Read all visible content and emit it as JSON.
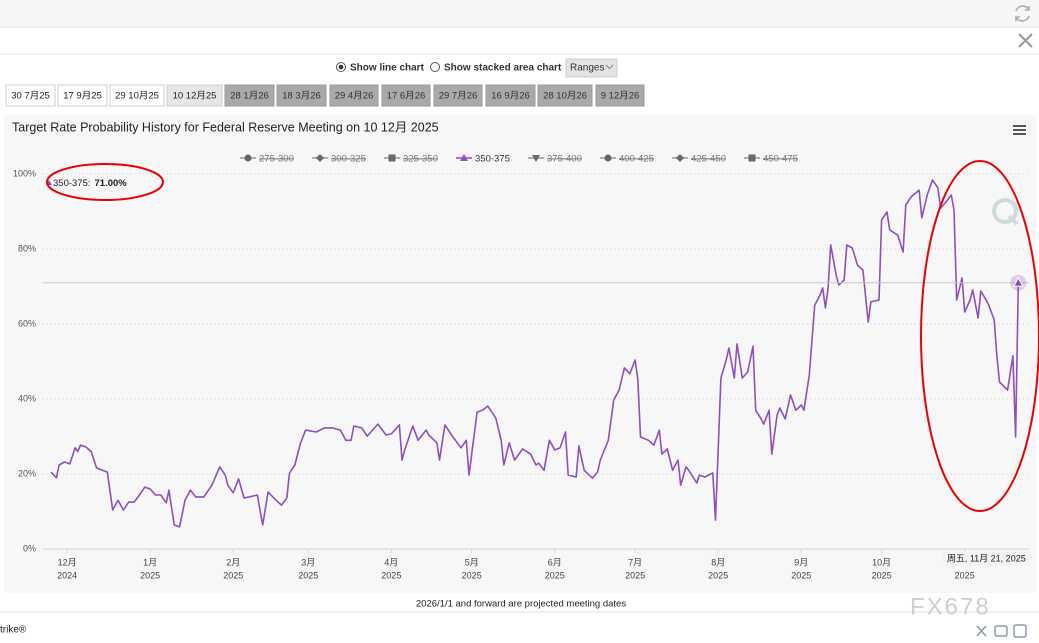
{
  "controls": {
    "line_chart": "Show line chart",
    "stacked_chart": "Show stacked area chart",
    "ranges": "Ranges"
  },
  "meeting_tabs": [
    "30 7月25",
    "17 9月25",
    "29 10月25",
    "10 12月25",
    "28 1月26",
    "18 3月26",
    "29 4月26",
    "17 6月26",
    "29 7月26",
    "16 9月26",
    "28 10月26",
    "9 12月26"
  ],
  "selected_tab": 3,
  "chart_data": {
    "type": "line",
    "title": "Target Rate Probability History for Federal Reserve Meeting on 10 12月 2025",
    "legend": [
      {
        "name": "275-300",
        "marker": "circle",
        "visible": false
      },
      {
        "name": "300-325",
        "marker": "diamond",
        "visible": false
      },
      {
        "name": "325-350",
        "marker": "square",
        "visible": false
      },
      {
        "name": "350-375",
        "marker": "triangle",
        "visible": true
      },
      {
        "name": "375-400",
        "marker": "triangle-down",
        "visible": false
      },
      {
        "name": "400-425",
        "marker": "circle",
        "visible": false
      },
      {
        "name": "425-450",
        "marker": "diamond",
        "visible": false
      },
      {
        "name": "450-475",
        "marker": "square",
        "visible": false
      }
    ],
    "tooltip": {
      "series": "350-375:",
      "label": "71.00%"
    },
    "crosshair": {
      "x": "2025-11-21",
      "label": "周五, 11月 21, 2025"
    },
    "xlim": [
      "2024-11-22",
      "2025-11-25"
    ],
    "xticks": [
      {
        "value": "2024-12-01",
        "label": "12月",
        "year": "2024"
      },
      {
        "value": "2025-01-01",
        "label": "1月",
        "year": "2025"
      },
      {
        "value": "2025-02-01",
        "label": "2月",
        "year": "2025"
      },
      {
        "value": "2025-03-01",
        "label": "3月",
        "year": "2025"
      },
      {
        "value": "2025-04-01",
        "label": "4月",
        "year": "2025"
      },
      {
        "value": "2025-05-01",
        "label": "5月",
        "year": "2025"
      },
      {
        "value": "2025-06-01",
        "label": "6月",
        "year": "2025"
      },
      {
        "value": "2025-07-01",
        "label": "7月",
        "year": "2025"
      },
      {
        "value": "2025-08-01",
        "label": "8月",
        "year": "2025"
      },
      {
        "value": "2025-09-01",
        "label": "9月",
        "year": "2025"
      },
      {
        "value": "2025-10-01",
        "label": "10月",
        "year": "2025"
      },
      {
        "value": "2025-11-01",
        "year": "2025"
      }
    ],
    "ylim": [
      0,
      100
    ],
    "yticks": [
      {
        "value": 0,
        "label": "0%"
      },
      {
        "value": 20,
        "label": "20%"
      },
      {
        "value": 40,
        "label": "40%"
      },
      {
        "value": 60,
        "label": "60%"
      },
      {
        "value": 80,
        "label": "80%"
      },
      {
        "value": 100,
        "label": "100%"
      }
    ],
    "grid": true,
    "x": [
      "2024-11-25",
      "2024-11-27",
      "2024-11-28",
      "2024-11-30",
      "2024-12-02",
      "2024-12-04",
      "2024-12-05",
      "2024-12-06",
      "2024-12-08",
      "2024-12-10",
      "2024-12-12",
      "2024-12-16",
      "2024-12-18",
      "2024-12-20",
      "2024-12-22",
      "2024-12-24",
      "2024-12-26",
      "2024-12-28",
      "2024-12-30",
      "2025-01-01",
      "2025-01-03",
      "2025-01-05",
      "2025-01-07",
      "2025-01-08",
      "2025-01-10",
      "2025-01-12",
      "2025-01-14",
      "2025-01-16",
      "2025-01-18",
      "2025-01-21",
      "2025-01-24",
      "2025-01-27",
      "2025-01-29",
      "2025-01-30",
      "2025-02-01",
      "2025-02-03",
      "2025-02-05",
      "2025-02-07",
      "2025-02-10",
      "2025-02-12",
      "2025-02-14",
      "2025-02-17",
      "2025-02-19",
      "2025-02-21",
      "2025-02-22",
      "2025-02-24",
      "2025-02-26",
      "2025-02-28",
      "2025-03-04",
      "2025-03-07",
      "2025-03-10",
      "2025-03-13",
      "2025-03-15",
      "2025-03-17",
      "2025-03-18",
      "2025-03-21",
      "2025-03-23",
      "2025-03-27",
      "2025-03-30",
      "2025-04-01",
      "2025-04-04",
      "2025-04-05",
      "2025-04-06",
      "2025-04-09",
      "2025-04-11",
      "2025-04-14",
      "2025-04-15",
      "2025-04-18",
      "2025-04-19",
      "2025-04-21",
      "2025-04-24",
      "2025-04-27",
      "2025-04-29",
      "2025-04-30",
      "2025-05-03",
      "2025-05-05",
      "2025-05-07",
      "2025-05-10",
      "2025-05-12",
      "2025-05-13",
      "2025-05-15",
      "2025-05-17",
      "2025-05-20",
      "2025-05-23",
      "2025-05-25",
      "2025-05-26",
      "2025-05-28",
      "2025-05-30",
      "2025-06-01",
      "2025-06-03",
      "2025-06-05",
      "2025-06-06",
      "2025-06-09",
      "2025-06-10",
      "2025-06-12",
      "2025-06-15",
      "2025-06-17",
      "2025-06-18",
      "2025-06-21",
      "2025-06-23",
      "2025-06-25",
      "2025-06-27",
      "2025-06-29",
      "2025-07-01",
      "2025-07-02",
      "2025-07-03",
      "2025-07-06",
      "2025-07-08",
      "2025-07-10",
      "2025-07-11",
      "2025-07-13",
      "2025-07-15",
      "2025-07-17",
      "2025-07-18",
      "2025-07-20",
      "2025-07-21",
      "2025-07-24",
      "2025-07-25",
      "2025-07-27",
      "2025-07-30",
      "2025-07-31",
      "2025-08-02",
      "2025-08-04",
      "2025-08-05",
      "2025-08-07",
      "2025-08-08",
      "2025-08-10",
      "2025-08-12",
      "2025-08-14",
      "2025-08-15",
      "2025-08-17",
      "2025-08-18",
      "2025-08-20",
      "2025-08-21",
      "2025-08-23",
      "2025-08-24",
      "2025-08-26",
      "2025-08-28",
      "2025-08-30",
      "2025-09-01",
      "2025-09-02",
      "2025-09-04",
      "2025-09-06",
      "2025-09-08",
      "2025-09-09",
      "2025-09-10",
      "2025-09-11",
      "2025-09-12",
      "2025-09-14",
      "2025-09-15",
      "2025-09-17",
      "2025-09-18",
      "2025-09-20",
      "2025-09-22",
      "2025-09-24",
      "2025-09-26",
      "2025-09-27",
      "2025-09-30",
      "2025-10-01",
      "2025-10-03",
      "2025-10-04",
      "2025-10-07",
      "2025-10-09",
      "2025-10-10",
      "2025-10-12",
      "2025-10-15",
      "2025-10-16",
      "2025-10-18",
      "2025-10-20",
      "2025-10-22",
      "2025-10-23",
      "2025-10-25",
      "2025-10-27",
      "2025-10-28",
      "2025-10-29",
      "2025-10-31",
      "2025-11-01",
      "2025-11-03",
      "2025-11-04",
      "2025-11-06",
      "2025-11-07",
      "2025-11-09",
      "2025-11-10",
      "2025-11-12",
      "2025-11-13",
      "2025-11-14",
      "2025-11-17",
      "2025-11-19",
      "2025-11-20",
      "2025-11-21"
    ],
    "series": [
      {
        "name": "350-375",
        "color": "#8e4fbf",
        "values": [
          20.5,
          19,
          22.4,
          23.2,
          22.7,
          27,
          26,
          27.7,
          27.2,
          26,
          21.6,
          20.5,
          10.4,
          13,
          10.4,
          12.5,
          12.5,
          14.4,
          16.5,
          16,
          14.4,
          14.4,
          12.3,
          15.7,
          6.4,
          5.9,
          13,
          15.7,
          13.9,
          13.9,
          17,
          21.9,
          19.7,
          17,
          15,
          18.7,
          13.6,
          13.9,
          14.4,
          6.4,
          15.2,
          13,
          11.7,
          13.6,
          20.3,
          22.4,
          28,
          31.7,
          31.2,
          32.3,
          32.3,
          31.7,
          29,
          29,
          32.8,
          32.3,
          30.1,
          33.3,
          30.4,
          30.7,
          33.1,
          23.7,
          26.4,
          32.8,
          29,
          31.7,
          30.4,
          28.3,
          23.7,
          33.1,
          29.9,
          27,
          29,
          19.7,
          36.5,
          37,
          38.1,
          34.9,
          29,
          22.4,
          28.3,
          23.7,
          26.7,
          25.3,
          22.4,
          22.9,
          21,
          29,
          26.4,
          27,
          31.2,
          19.7,
          19.2,
          27.5,
          21,
          18.9,
          20.5,
          23.7,
          29,
          39.7,
          42.4,
          48.3,
          46.7,
          50.4,
          45.3,
          29.9,
          29,
          27.7,
          31.7,
          25.3,
          26.7,
          21,
          23.7,
          17,
          21.9,
          21,
          17.6,
          19.7,
          19.2,
          20.3,
          7.7,
          45.6,
          50.4,
          53.6,
          45.6,
          54.7,
          45.6,
          47.2,
          54.1,
          37,
          34.7,
          33.3,
          37,
          25.3,
          35.7,
          37.6,
          34.7,
          41.1,
          37,
          38.4,
          37,
          46.4,
          65,
          67.7,
          69.6,
          64.3,
          69.3,
          81.1,
          73.1,
          70.4,
          71.7,
          81.1,
          80.3,
          75.7,
          74.4,
          60.5,
          65.9,
          66.4,
          87.7,
          89.9,
          85.1,
          83.7,
          79.2,
          91.7,
          93.9,
          95.7,
          88.3,
          94.4,
          98.4,
          96.3,
          90.9,
          92.5,
          94.4,
          90.4,
          66.4,
          72.3,
          63.2,
          66.4,
          69.1,
          61.6,
          68.8,
          66.4,
          65,
          61.1,
          51.7,
          44.5,
          42.4,
          51.5,
          29.9,
          71
        ]
      }
    ]
  },
  "note": "2026/1/1 and forward are projected meeting dates",
  "footer_left": "trike®",
  "watermark": "FX678"
}
